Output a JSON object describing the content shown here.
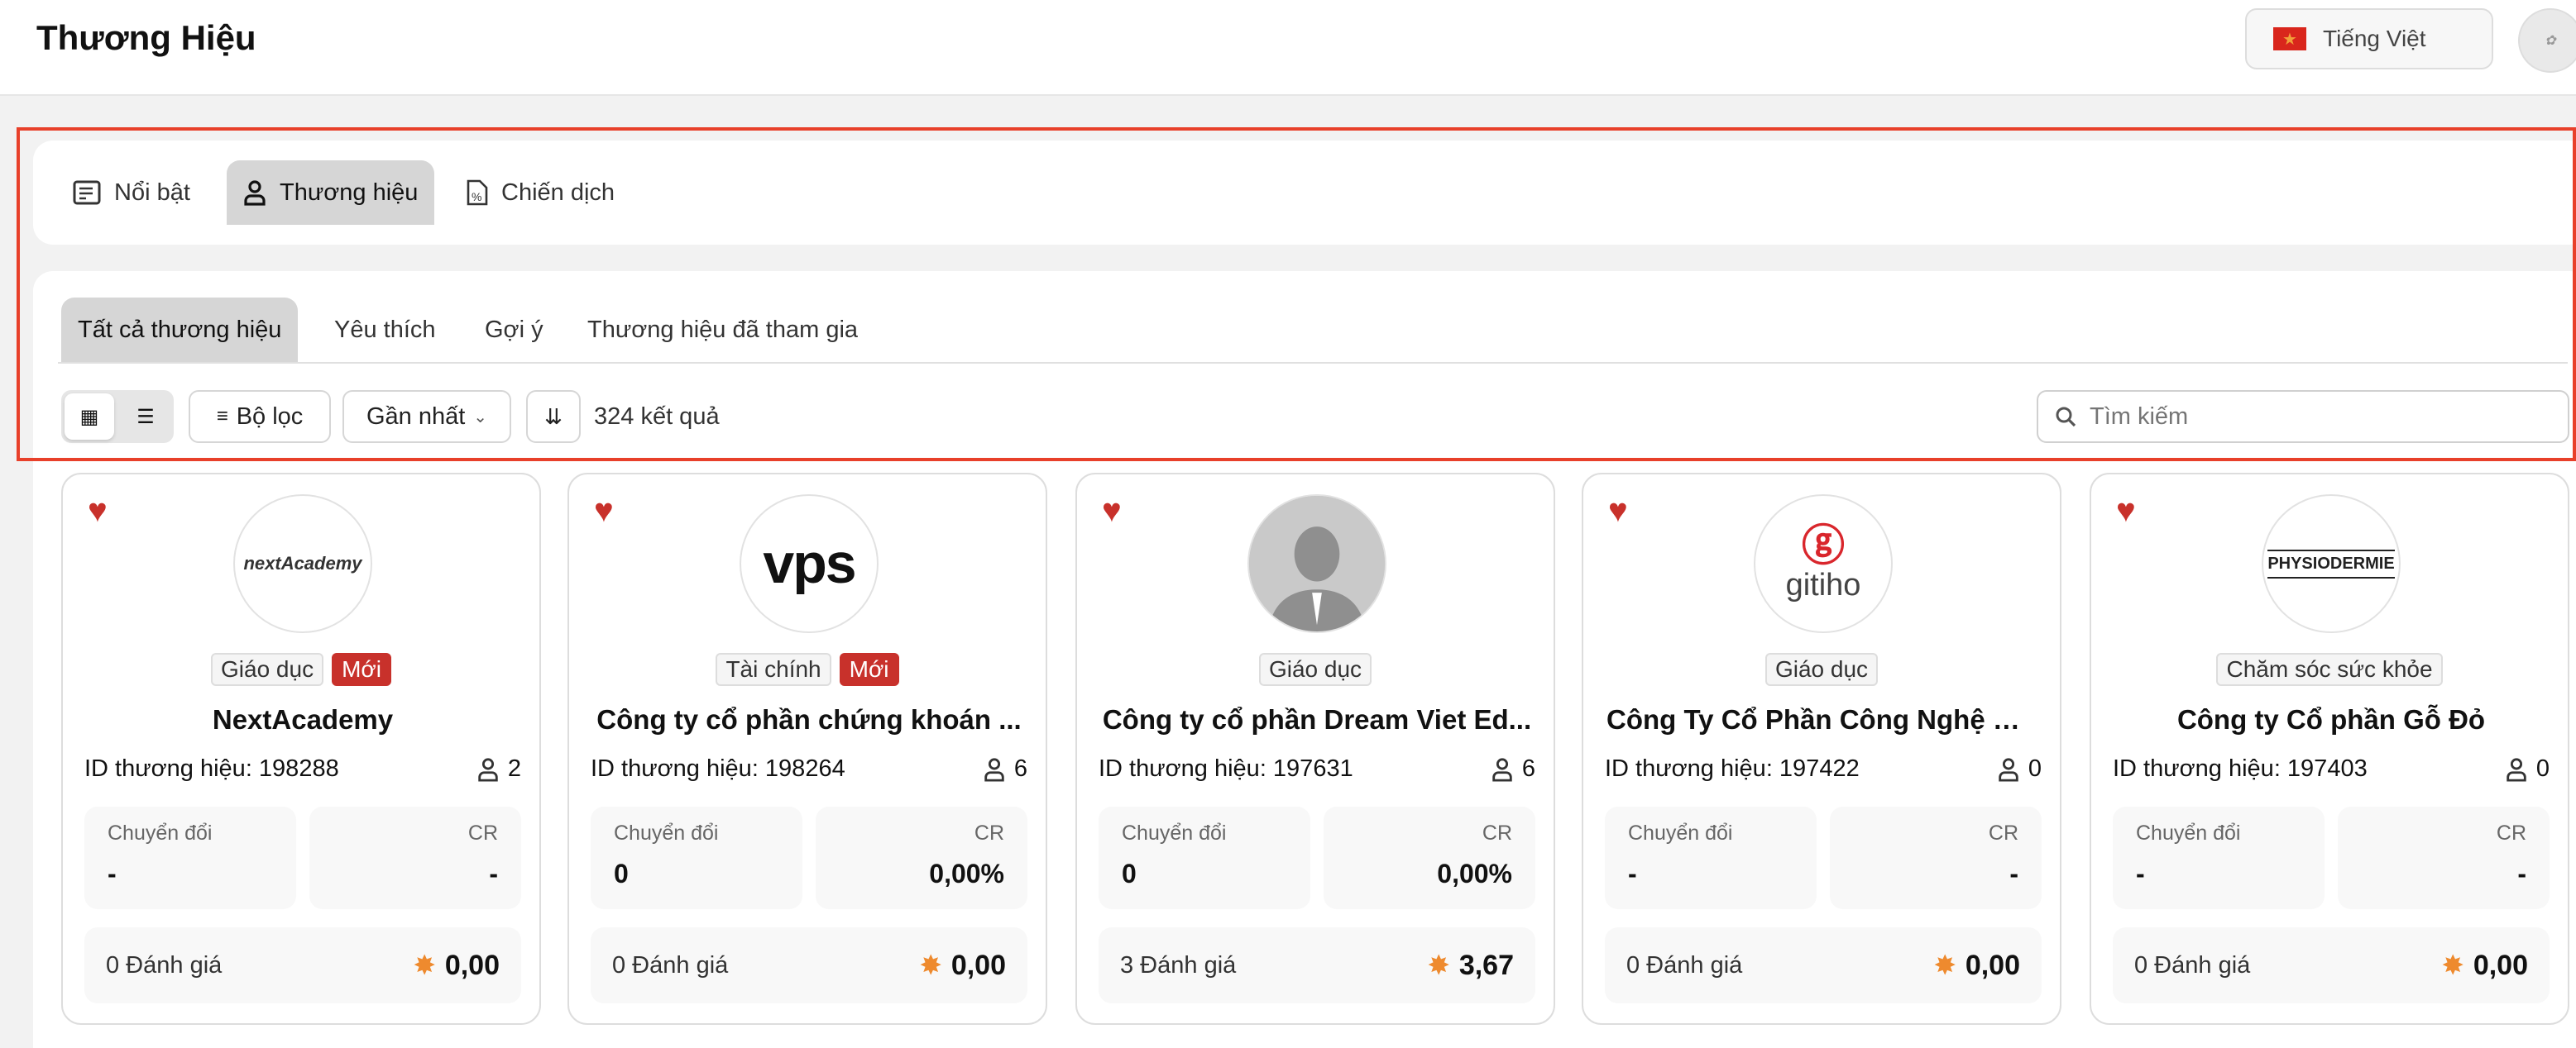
{
  "header": {
    "title": "Thương Hiệu",
    "language": "Tiếng Việt",
    "flag_icon": "vietnam-flag"
  },
  "main_tabs": [
    {
      "label": "Nổi bật",
      "icon": "list-alt-icon"
    },
    {
      "label": "Thương hiệu",
      "icon": "user-icon",
      "active": true
    },
    {
      "label": "Chiến dịch",
      "icon": "file-percent-icon"
    }
  ],
  "sub_tabs": [
    {
      "label": "Tất cả thương hiệu",
      "active": true
    },
    {
      "label": "Yêu thích"
    },
    {
      "label": "Gợi ý"
    },
    {
      "label": "Thương hiệu đã tham gia"
    }
  ],
  "toolbar": {
    "view": "grid",
    "filter_label": "Bộ lọc",
    "sort_label": "Gần nhất",
    "result_count": "324 kết quả",
    "search_placeholder": "Tìm kiếm"
  },
  "colors": {
    "accent_red": "#c8312b",
    "outline": "#e8402a",
    "star": "#ee8a2e"
  },
  "brands": [
    {
      "logo": "nextAcademy",
      "category": "Giáo dục",
      "new": "Mới",
      "name": "NextAcademy",
      "id": "ID thương hiệu: 198288",
      "members": "2",
      "conv_label": "Chuyển đổi",
      "conv": "-",
      "cr_label": "CR",
      "cr": "-",
      "reviews": "0 Đánh giá",
      "rating": "0,00"
    },
    {
      "logo": "vps",
      "category": "Tài chính",
      "new": "Mới",
      "name": "Công ty cổ phần chứng khoán ...",
      "id": "ID thương hiệu: 198264",
      "members": "6",
      "conv_label": "Chuyển đổi",
      "conv": "0",
      "cr_label": "CR",
      "cr": "0,00%",
      "reviews": "0 Đánh giá",
      "rating": "0,00"
    },
    {
      "logo": "",
      "category": "Giáo dục",
      "name": "Công ty cổ phần Dream Viet Ed...",
      "id": "ID thương hiệu: 197631",
      "members": "6",
      "conv_label": "Chuyển đổi",
      "conv": "0",
      "cr_label": "CR",
      "cr": "0,00%",
      "reviews": "3 Đánh giá",
      "rating": "3,67"
    },
    {
      "logo": "gitiho",
      "category": "Giáo dục",
      "name": "Công Ty Cổ Phần Công Nghệ Gi...",
      "id": "ID thương hiệu: 197422",
      "members": "0",
      "conv_label": "Chuyển đổi",
      "conv": "-",
      "cr_label": "CR",
      "cr": "-",
      "reviews": "0 Đánh giá",
      "rating": "0,00"
    },
    {
      "logo": "PHYSIODERMIE",
      "category": "Chăm sóc sức khỏe",
      "name": "Công ty Cổ phần Gỗ Đỏ",
      "id": "ID thương hiệu: 197403",
      "members": "0",
      "conv_label": "Chuyển đổi",
      "conv": "-",
      "cr_label": "CR",
      "cr": "-",
      "reviews": "0 Đánh giá",
      "rating": "0,00"
    }
  ]
}
